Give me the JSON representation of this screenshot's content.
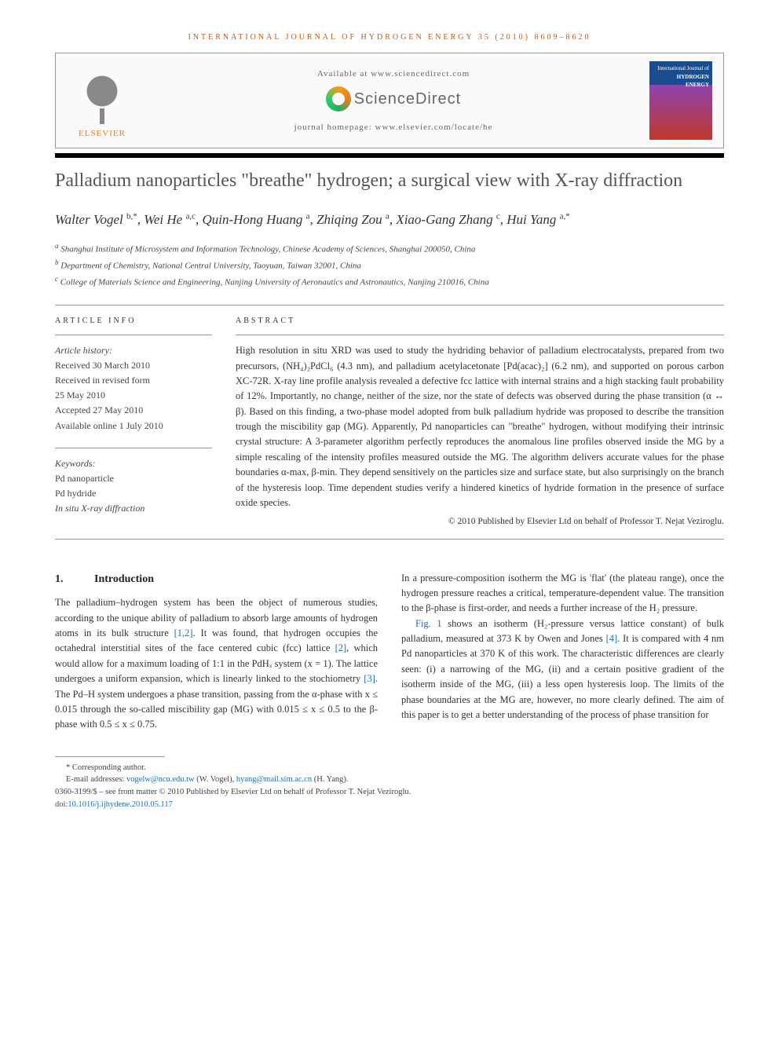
{
  "journal_header": "INTERNATIONAL JOURNAL OF HYDROGEN ENERGY 35 (2010) 8609–8620",
  "banner": {
    "available": "Available at www.sciencedirect.com",
    "sd_name": "ScienceDirect",
    "homepage": "journal homepage: www.elsevier.com/locate/he",
    "elsevier": "ELSEVIER",
    "cover_line1": "International Journal of",
    "cover_line2": "HYDROGEN",
    "cover_line3": "ENERGY"
  },
  "title": "Palladium nanoparticles \"breathe\" hydrogen; a surgical view with X-ray diffraction",
  "authors_html": "Walter Vogel <sup>b,*</sup>, Wei He <sup>a,c</sup>, Quin-Hong Huang <sup>a</sup>, Zhiqing Zou <sup>a</sup>, Xiao-Gang Zhang <sup>c</sup>, Hui Yang <sup>a,*</sup>",
  "affiliations": {
    "a": "Shanghai Institute of Microsystem and Information Technology, Chinese Academy of Sciences, Shanghai 200050, China",
    "b": "Department of Chemistry, National Central University, Taoyuan, Taiwan 32001, China",
    "c": "College of Materials Science and Engineering, Nanjing University of Aeronautics and Astronautics, Nanjing 210016, China"
  },
  "info": {
    "heading": "ARTICLE INFO",
    "history_label": "Article history:",
    "received": "Received 30 March 2010",
    "revised1": "Received in revised form",
    "revised2": "25 May 2010",
    "accepted": "Accepted 27 May 2010",
    "online": "Available online 1 July 2010",
    "keywords_label": "Keywords:",
    "kw1": "Pd nanoparticle",
    "kw2": "Pd hydride",
    "kw3": "In situ X-ray diffraction"
  },
  "abstract": {
    "heading": "ABSTRACT",
    "text": "High resolution in situ XRD was used to study the hydriding behavior of palladium electrocatalysts, prepared from two precursors, (NH₄)₂PdCl₆ (4.3 nm), and palladium acetylacetonate [Pd(acac)₂] (6.2 nm), and supported on porous carbon XC-72R. X-ray line profile analysis revealed a defective fcc lattice with internal strains and a high stacking fault probability of 12%. Importantly, no change, neither of the size, nor the state of defects was observed during the phase transition (α ↔ β). Based on this finding, a two-phase model adopted from bulk palladium hydride was proposed to describe the transition trough the miscibility gap (MG). Apparently, Pd nanoparticles can \"breathe\" hydrogen, without modifying their intrinsic crystal structure: A 3-parameter algorithm perfectly reproduces the anomalous line profiles observed inside the MG by a simple rescaling of the intensity profiles measured outside the MG. The algorithm delivers accurate values for the phase boundaries α-max, β-min. They depend sensitively on the particles size and surface state, but also surprisingly on the branch of the hysteresis loop. Time dependent studies verify a hindered kinetics of hydride formation in the presence of surface oxide species.",
    "copyright": "© 2010 Published by Elsevier Ltd on behalf of Professor T. Nejat Veziroglu."
  },
  "section1": {
    "num": "1.",
    "title": "Introduction",
    "col1_p1a": "The palladium–hydrogen system has been the object of numerous studies, according to the unique ability of palladium to absorb large amounts of hydrogen atoms in its bulk structure ",
    "col1_ref1": "[1,2]",
    "col1_p1b": ". It was found, that hydrogen occupies the octahedral interstitial sites of the face centered cubic (fcc) lattice ",
    "col1_ref2": "[2]",
    "col1_p1c": ", which would allow for a maximum loading of 1:1 in the PdHₓ system (x = 1). The lattice undergoes a uniform expansion, which is linearly linked to the stochiometry ",
    "col1_ref3": "[3]",
    "col1_p1d": ". The Pd–H system undergoes a phase transition, passing from the α-phase with x ≤ 0.015 through the so-called miscibility gap (MG) with 0.015 ≤ x ≤ 0.5 to the β-phase with 0.5 ≤ x ≤ 0.75.",
    "col2_p1": "In a pressure-composition isotherm the MG is 'flat' (the plateau range), once the hydrogen pressure reaches a critical, temperature-dependent value. The transition to the β-phase is first-order, and needs a further increase of the H₂ pressure.",
    "col2_p2a": "Fig. 1",
    "col2_p2b": " shows an isotherm (H₂-pressure versus lattice constant) of bulk palladium, measured at 373 K by Owen and Jones ",
    "col2_ref4": "[4]",
    "col2_p2c": ". It is compared with 4 nm Pd nanoparticles at 370 K of this work. The characteristic differences are clearly seen: (i) a narrowing of the MG, (ii) and a certain positive gradient of the isotherm inside of the MG, (iii) a less open hysteresis loop. The limits of the phase boundaries at the MG are, however, no more clearly defined. The aim of this paper is to get a better understanding of the process of phase transition for"
  },
  "footnote": {
    "corr": "* Corresponding author.",
    "emails_label": "E-mail addresses: ",
    "email1": "vogelw@ncu.edu.tw",
    "email1_who": " (W. Vogel), ",
    "email2": "hyang@mail.sim.ac.cn",
    "email2_who": " (H. Yang).",
    "front": "0360-3199/$ – see front matter © 2010 Published by Elsevier Ltd on behalf of Professor T. Nejat Veziroglu.",
    "doi_label": "doi:",
    "doi": "10.1016/j.ijhydene.2010.05.117"
  }
}
